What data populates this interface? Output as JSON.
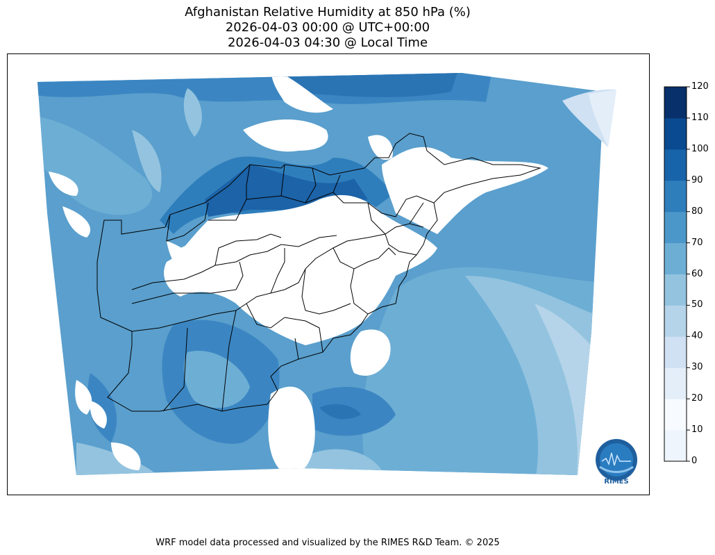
{
  "title": {
    "line1": "Afghanistan Relative Humidity at 850 hPa (%)",
    "line2": "2026-04-03 00:00 @ UTC+00:00",
    "line3": "2026-04-03 04:30 @ Local Time"
  },
  "colorbar": {
    "ticks": [
      "0",
      "10",
      "20",
      "30",
      "40",
      "50",
      "60",
      "70",
      "80",
      "90",
      "100",
      "110",
      "120"
    ],
    "colors": [
      "#f7fbff",
      "#e3eef9",
      "#cfe1f2",
      "#b5d4e9",
      "#93c3df",
      "#6daed5",
      "#4b97c9",
      "#2f7ebc",
      "#1864aa",
      "#0a4a90",
      "#08306b"
    ],
    "extra_colors": [
      "#eef5fc"
    ]
  },
  "logo": {
    "text": "RIMES"
  },
  "footer": "WRF model data processed and visualized by the RIMES R&D Team. © 2025"
}
